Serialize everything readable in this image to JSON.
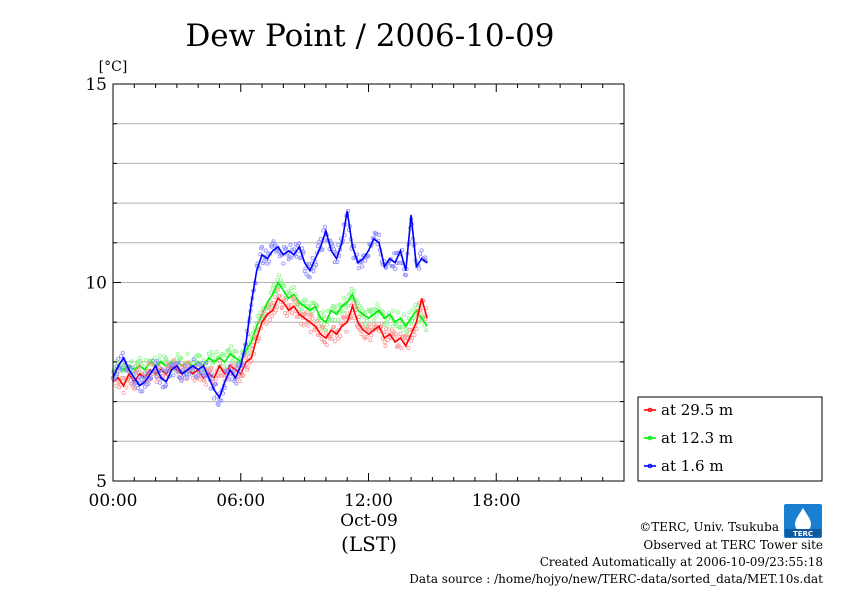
{
  "chart_data": {
    "type": "line",
    "title": "Dew Point / 2006-10-09",
    "ylabel": "[°C]",
    "xlabel": "Oct-09",
    "x_unit_label": "(LST)",
    "ylim": [
      5,
      15
    ],
    "xlim": [
      0,
      24
    ],
    "y_ticks": [
      {
        "value": 15,
        "label": "15"
      },
      {
        "value": 10,
        "label": "10"
      },
      {
        "value": 5,
        "label": "5"
      }
    ],
    "x_ticks": [
      {
        "value": 0,
        "label": "00:00"
      },
      {
        "value": 6,
        "label": "06:00"
      },
      {
        "value": 12,
        "label": "12:00"
      },
      {
        "value": 18,
        "label": "18:00"
      }
    ],
    "grid": true,
    "legend_position": "right-lower",
    "series": [
      {
        "name": "at 29.5 m",
        "color": "#ff0000",
        "x": [
          0,
          0.25,
          0.5,
          0.75,
          1,
          1.25,
          1.5,
          1.75,
          2,
          2.25,
          2.5,
          2.75,
          3,
          3.25,
          3.5,
          3.75,
          4,
          4.25,
          4.5,
          4.75,
          5,
          5.25,
          5.5,
          5.75,
          6,
          6.25,
          6.5,
          6.75,
          7,
          7.25,
          7.5,
          7.75,
          8,
          8.25,
          8.5,
          8.75,
          9,
          9.25,
          9.5,
          9.75,
          10,
          10.25,
          10.5,
          10.75,
          11,
          11.25,
          11.5,
          11.75,
          12,
          12.25,
          12.5,
          12.75,
          13,
          13.25,
          13.5,
          13.75,
          14,
          14.25,
          14.5,
          14.75
        ],
        "y": [
          7.5,
          7.6,
          7.4,
          7.7,
          7.5,
          7.7,
          7.6,
          7.8,
          7.7,
          7.8,
          7.7,
          7.9,
          7.8,
          7.7,
          7.8,
          7.7,
          7.8,
          7.6,
          7.7,
          7.6,
          7.9,
          7.7,
          7.9,
          7.8,
          7.7,
          8.0,
          8.1,
          8.6,
          9.0,
          9.2,
          9.3,
          9.6,
          9.5,
          9.3,
          9.4,
          9.2,
          9.1,
          9.0,
          8.9,
          8.7,
          8.6,
          8.8,
          8.7,
          8.9,
          9.0,
          9.4,
          9.0,
          8.8,
          8.7,
          8.8,
          8.9,
          8.6,
          8.7,
          8.5,
          8.6,
          8.4,
          8.7,
          9.0,
          9.6,
          9.1
        ]
      },
      {
        "name": "at 12.3 m",
        "color": "#00ee00",
        "x": [
          0,
          0.25,
          0.5,
          0.75,
          1,
          1.25,
          1.5,
          1.75,
          2,
          2.25,
          2.5,
          2.75,
          3,
          3.25,
          3.5,
          3.75,
          4,
          4.25,
          4.5,
          4.75,
          5,
          5.25,
          5.5,
          5.75,
          6,
          6.25,
          6.5,
          6.75,
          7,
          7.25,
          7.5,
          7.75,
          8,
          8.25,
          8.5,
          8.75,
          9,
          9.25,
          9.5,
          9.75,
          10,
          10.25,
          10.5,
          10.75,
          11,
          11.25,
          11.5,
          11.75,
          12,
          12.25,
          12.5,
          12.75,
          13,
          13.25,
          13.5,
          13.75,
          14,
          14.25,
          14.5,
          14.75
        ],
        "y": [
          7.7,
          7.9,
          7.8,
          7.9,
          7.8,
          7.9,
          7.8,
          8.0,
          7.9,
          8.0,
          7.9,
          8.0,
          8.0,
          7.9,
          8.0,
          7.9,
          8.0,
          7.9,
          8.1,
          8.0,
          8.1,
          8.0,
          8.2,
          8.1,
          8.0,
          8.3,
          8.5,
          8.9,
          9.2,
          9.5,
          9.7,
          10.0,
          9.8,
          9.6,
          9.7,
          9.5,
          9.4,
          9.3,
          9.4,
          9.1,
          9.0,
          9.3,
          9.2,
          9.4,
          9.5,
          9.7,
          9.3,
          9.2,
          9.1,
          9.2,
          9.3,
          9.1,
          9.2,
          9.0,
          9.1,
          8.9,
          9.1,
          9.3,
          9.1,
          8.9
        ]
      },
      {
        "name": "at 1.6 m",
        "color": "#0000ff",
        "x": [
          0,
          0.25,
          0.5,
          0.75,
          1,
          1.25,
          1.5,
          1.75,
          2,
          2.25,
          2.5,
          2.75,
          3,
          3.25,
          3.5,
          3.75,
          4,
          4.25,
          4.5,
          4.75,
          5,
          5.25,
          5.5,
          5.75,
          6,
          6.25,
          6.5,
          6.75,
          7,
          7.25,
          7.5,
          7.75,
          8,
          8.25,
          8.5,
          8.75,
          9,
          9.25,
          9.5,
          9.75,
          10,
          10.25,
          10.5,
          10.75,
          11,
          11.25,
          11.5,
          11.75,
          12,
          12.25,
          12.5,
          12.75,
          13,
          13.25,
          13.5,
          13.75,
          14,
          14.25,
          14.5,
          14.75
        ],
        "y": [
          7.6,
          7.9,
          8.1,
          7.8,
          7.6,
          7.4,
          7.5,
          7.7,
          7.9,
          7.6,
          7.5,
          7.8,
          7.9,
          7.7,
          7.8,
          7.9,
          7.8,
          7.9,
          7.6,
          7.3,
          7.1,
          7.5,
          7.8,
          7.6,
          7.9,
          8.5,
          9.5,
          10.3,
          10.7,
          10.6,
          10.8,
          10.9,
          10.7,
          10.8,
          10.7,
          10.9,
          10.5,
          10.3,
          10.6,
          10.9,
          11.3,
          10.8,
          10.6,
          11.0,
          11.8,
          10.9,
          10.5,
          10.6,
          10.8,
          11.1,
          11.0,
          10.4,
          10.6,
          10.5,
          10.8,
          10.3,
          11.7,
          10.4,
          10.6,
          10.5
        ]
      }
    ]
  },
  "footer": {
    "copyright": "©TERC, Univ. Tsukuba",
    "observed": "Observed at TERC Tower site",
    "created": "Created Automatically at 2006-10-09/23:55:18",
    "source": "Data source : /home/hojyo/new/TERC-data/sorted_data/MET.10s.dat"
  },
  "logo": {
    "text": "TERC"
  }
}
